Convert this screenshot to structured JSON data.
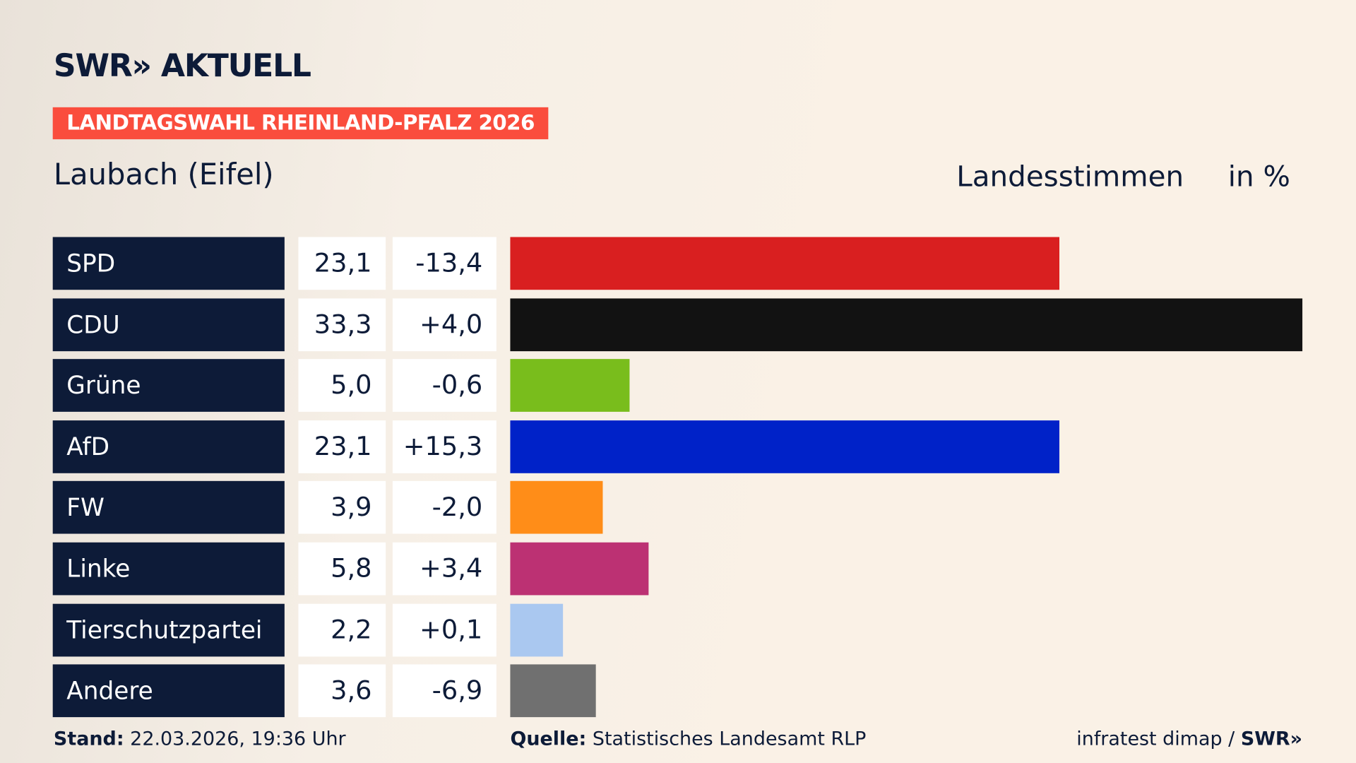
{
  "header": {
    "logo": "SWR» AKTUELL",
    "tag": "LANDTAGSWAHL RHEINLAND-PFALZ 2026",
    "place": "Laubach (Eifel)",
    "metric": "Landesstimmen",
    "unit": "in %"
  },
  "chart_data": {
    "type": "bar",
    "orientation": "horizontal",
    "xlim": [
      0,
      33.3
    ],
    "categories": [
      "SPD",
      "CDU",
      "Grüne",
      "AfD",
      "FW",
      "Linke",
      "Tierschutzpartei",
      "Andere"
    ],
    "values": [
      23.1,
      33.3,
      5.0,
      23.1,
      3.9,
      5.8,
      2.2,
      3.6
    ],
    "value_labels": [
      "23,1",
      "33,3",
      "5,0",
      "23,1",
      "3,9",
      "5,8",
      "2,2",
      "3,6"
    ],
    "change_labels": [
      "-13,4",
      "+4,0",
      "-0,6",
      "+15,3",
      "-2,0",
      "+3,4",
      "+0,1",
      "-6,9"
    ],
    "colors": [
      "#d91f20",
      "#121212",
      "#79bd1c",
      "#0022c8",
      "#ff8d18",
      "#bc3173",
      "#aac8f0",
      "#707070"
    ]
  },
  "footer": {
    "stand_label": "Stand:",
    "stand_value": " 22.03.2026, 19:36 Uhr",
    "source_label": "Quelle:",
    "source_value": " Statistisches Landesamt RLP",
    "credit": "infratest dimap / ",
    "credit_logo": "SWR»"
  }
}
